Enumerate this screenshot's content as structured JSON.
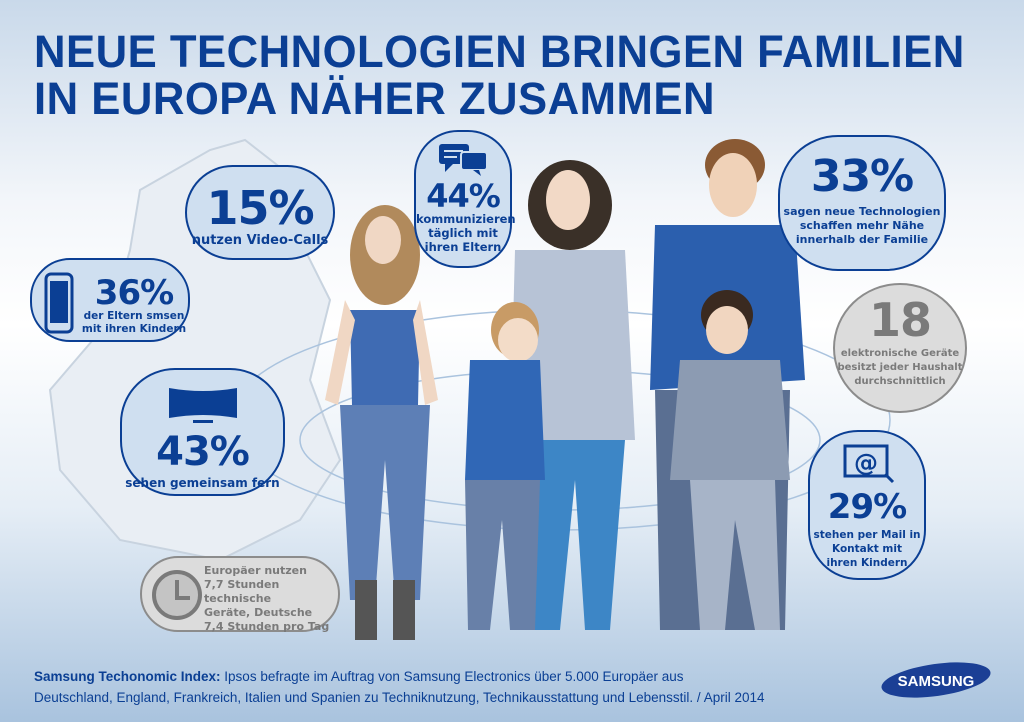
{
  "title": {
    "line1": "NEUE TECHNOLOGIEN BRINGEN FAMILIEN",
    "line2": "IN EUROPA NÄHER ZUSAMMEN"
  },
  "stats": {
    "video": {
      "value": "15%",
      "text": "nutzen Video-Calls"
    },
    "communicate": {
      "value": "44%",
      "lines": [
        "kommunizieren",
        "täglich mit",
        "ihren Eltern"
      ],
      "icon": "chat-bubbles-icon"
    },
    "sms": {
      "value": "36%",
      "lines": [
        "der Eltern smsen",
        "mit ihren Kindern"
      ],
      "icon": "smartphone-icon"
    },
    "tv": {
      "value": "43%",
      "text": "sehen gemeinsam fern",
      "icon": "tv-icon"
    },
    "time": {
      "lines": [
        "Europäer nutzen",
        "7,7 Stunden technische",
        "Geräte, Deutsche",
        "7,4 Stunden pro Tag"
      ],
      "icon": "clock-icon"
    },
    "closeness": {
      "value": "33%",
      "lines": [
        "sagen neue Technologien",
        "schaffen mehr Nähe",
        "innerhalb der Familie"
      ]
    },
    "devices": {
      "value": "18",
      "lines": [
        "elektronische Geräte",
        "besitzt jeder Haushalt",
        "durchschnittlich"
      ]
    },
    "mail": {
      "value": "29%",
      "lines": [
        "stehen per Mail in",
        "Kontakt mit",
        "ihren Kindern"
      ],
      "icon": "email-at-icon"
    }
  },
  "footer": {
    "source_label": "Samsung Techonomic Index:",
    "line1": "Ipsos befragte im Auftrag von Samsung Electronics über 5.000 Europäer aus",
    "line2": "Deutschland, England, Frankreich, Italien und Spanien zu Techniknutzung, Technikausstattung und Lebensstil. / April 2014"
  },
  "logo": {
    "text": "SAMSUNG"
  },
  "colors": {
    "brand_blue": "#0b3f94",
    "bubble_blue": "#cfdff0",
    "bubble_grey": "#dcdcdc",
    "text_grey": "#7a7a7a"
  }
}
